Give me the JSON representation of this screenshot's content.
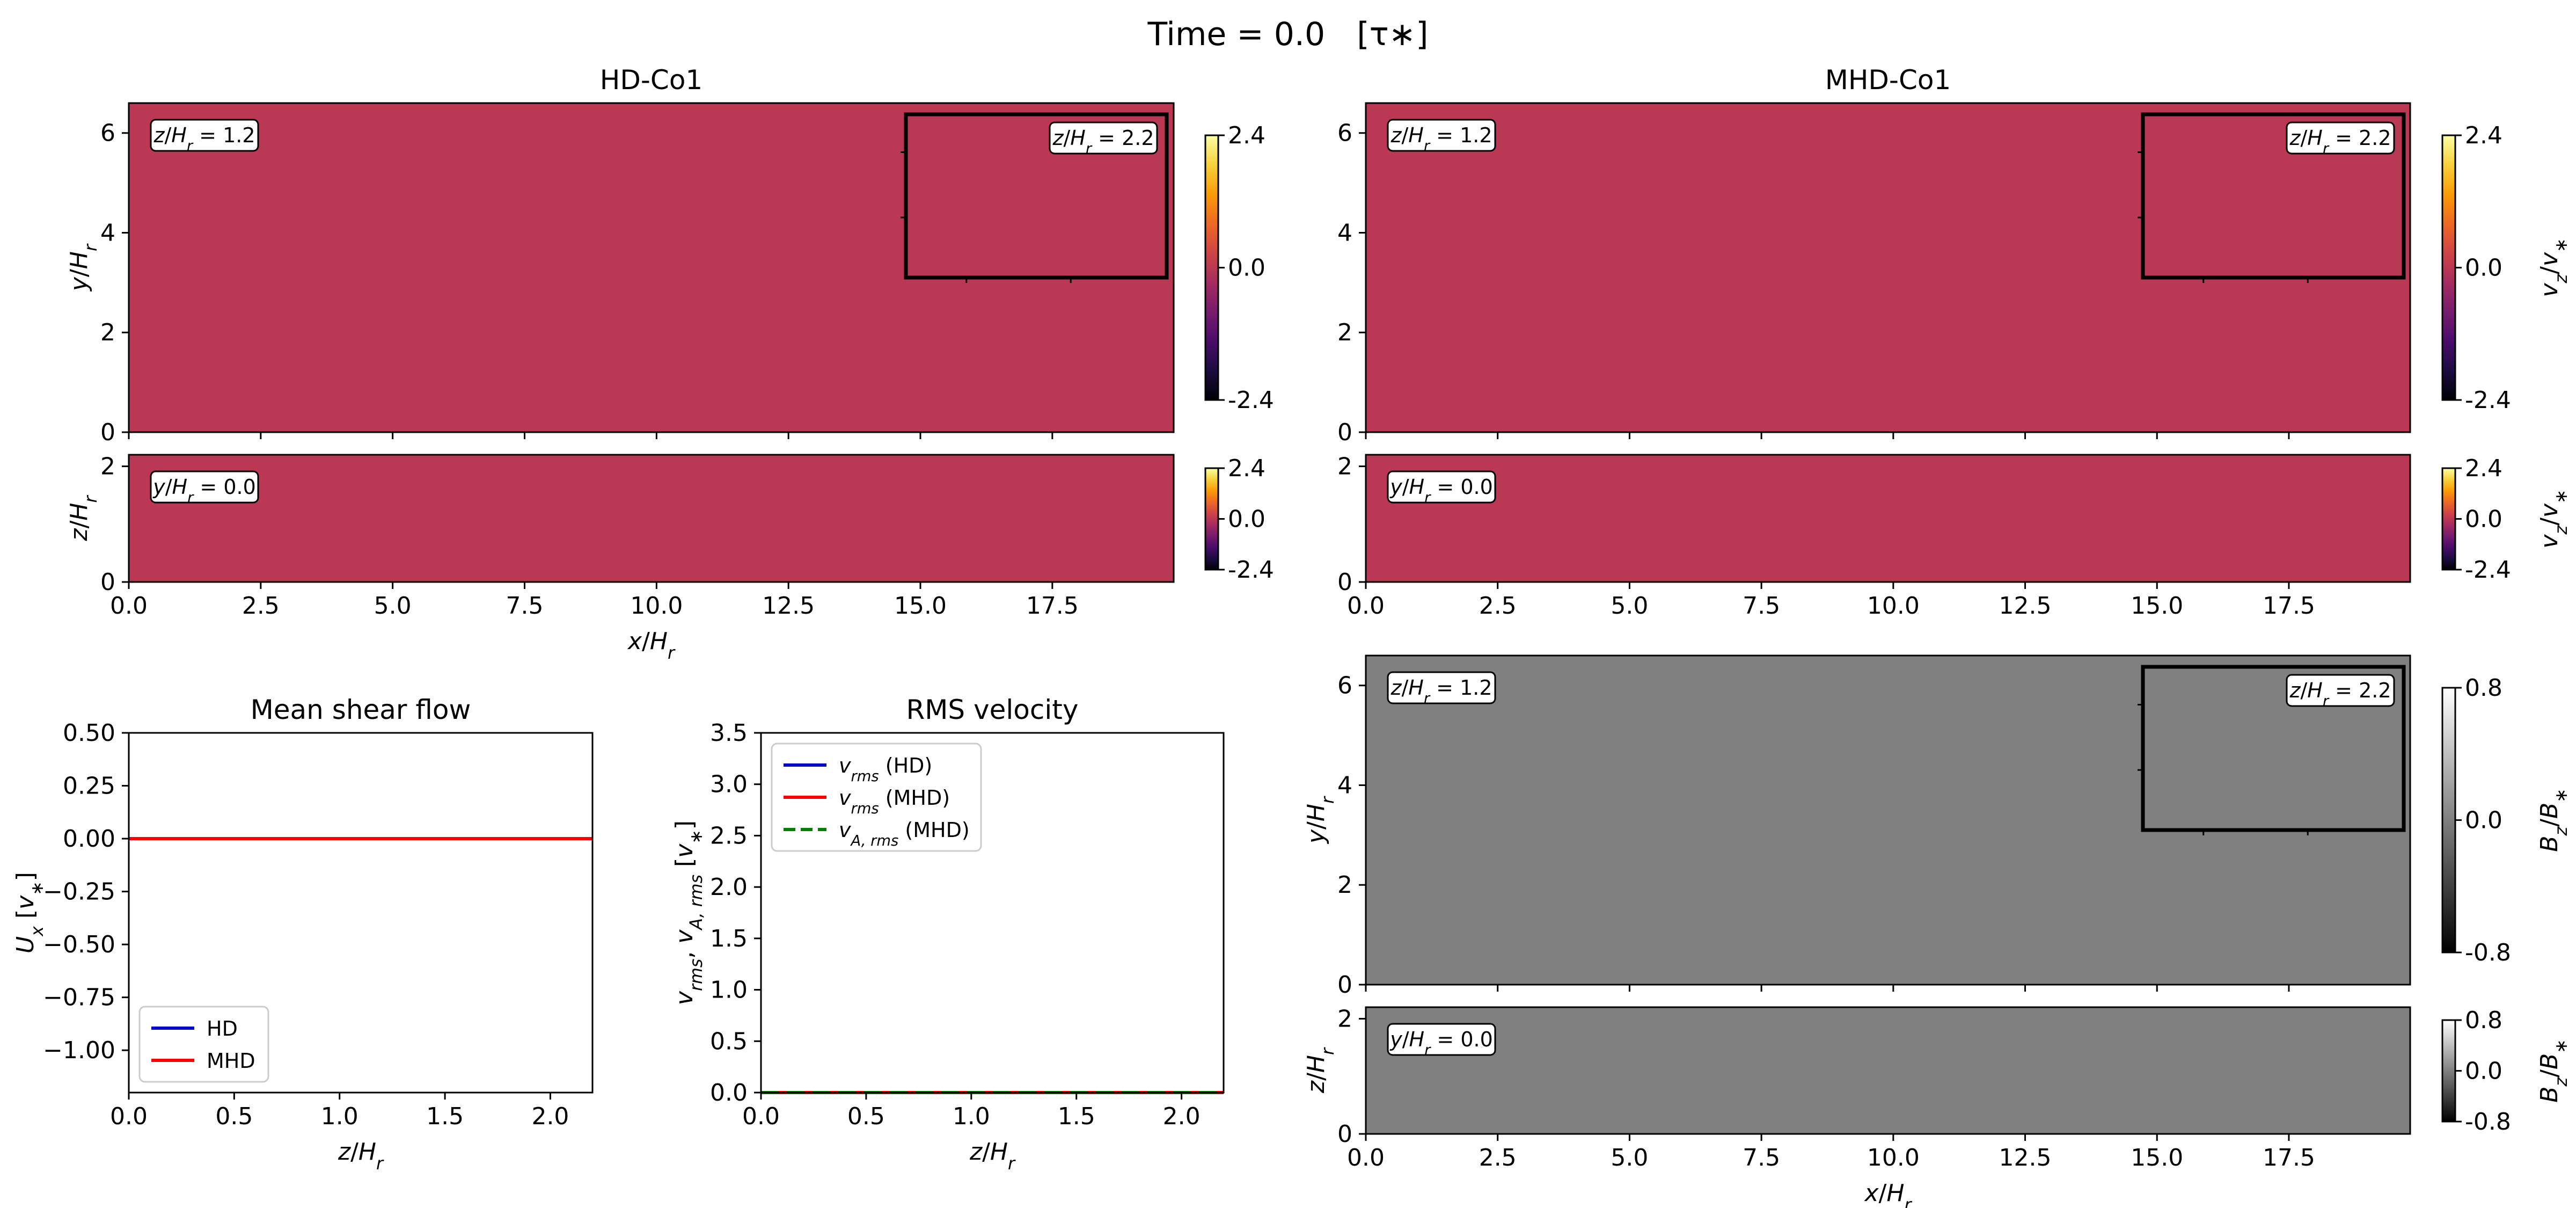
{
  "figure": {
    "title_text": "Time = 0.0",
    "title_units": "[τ∗]"
  },
  "colors": {
    "field_velocity": "#cd5c5c",
    "field_magnetic": "#808080",
    "hd_line": "#0000cc",
    "mhd_line": "#ff0000",
    "alfven_line": "#007f00"
  },
  "colormaps": {
    "inferno": [
      "#000004",
      "#1b0c41",
      "#4a0c6b",
      "#781c6d",
      "#a52c60",
      "#cf4446",
      "#ed6925",
      "#fb9b06",
      "#f7d13d",
      "#fcffa4"
    ],
    "gray": [
      "#000000",
      "#ffffff"
    ]
  },
  "chart_data": [
    {
      "id": "hd-xy-slice",
      "type": "heatmap",
      "title": "HD-Co1",
      "xlabel": "",
      "ylabel": "y/Hr",
      "xlim": [
        0,
        19.8
      ],
      "ylim": [
        0,
        6.6
      ],
      "xticks": [
        0,
        2.5,
        5,
        7.5,
        10,
        12.5,
        15,
        17.5
      ],
      "xticklabels": [
        "",
        "",
        "",
        "",
        "",
        "",
        "",
        ""
      ],
      "yticks": [
        0,
        2,
        4,
        6
      ],
      "yticklabels": [
        "0",
        "2",
        "4",
        "6"
      ],
      "value": 0.0,
      "label_plane": "z/Hr",
      "label_plane_value": "= 1.2",
      "inset": {
        "label_plane": "z/Hr",
        "label_plane_value": "= 2.2"
      },
      "colorbar": {
        "cmap": "inferno",
        "vmin": -2.4,
        "vmax": 2.4,
        "ticks": [
          "-2.4",
          "0.0",
          "2.4"
        ],
        "label": ""
      }
    },
    {
      "id": "hd-xz-slice",
      "type": "heatmap",
      "title": "",
      "xlabel": "x/Hr",
      "ylabel": "z/Hr",
      "xlim": [
        0,
        19.8
      ],
      "ylim": [
        0,
        2.2
      ],
      "xticks": [
        0,
        2.5,
        5,
        7.5,
        10,
        12.5,
        15,
        17.5
      ],
      "xticklabels": [
        "0.0",
        "2.5",
        "5.0",
        "7.5",
        "10.0",
        "12.5",
        "15.0",
        "17.5"
      ],
      "yticks": [
        0,
        2
      ],
      "yticklabels": [
        "0",
        "2"
      ],
      "value": 0.0,
      "label_plane": "y/Hr",
      "label_plane_value": "= 0.0",
      "colorbar": {
        "cmap": "inferno",
        "vmin": -2.4,
        "vmax": 2.4,
        "ticks": [
          "-2.4",
          "0.0",
          "2.4"
        ],
        "label": ""
      }
    },
    {
      "id": "mhd-xy-slice",
      "type": "heatmap",
      "title": "MHD-Co1",
      "xlabel": "",
      "ylabel": "",
      "xlim": [
        0,
        19.8
      ],
      "ylim": [
        0,
        6.6
      ],
      "xticks": [
        0,
        2.5,
        5,
        7.5,
        10,
        12.5,
        15,
        17.5
      ],
      "xticklabels": [
        "",
        "",
        "",
        "",
        "",
        "",
        "",
        ""
      ],
      "yticks": [
        0,
        2,
        4,
        6
      ],
      "yticklabels": [
        "0",
        "2",
        "4",
        "6"
      ],
      "value": 0.0,
      "label_plane": "z/Hr",
      "label_plane_value": "= 1.2",
      "inset": {
        "label_plane": "z/Hr",
        "label_plane_value": "= 2.2"
      },
      "colorbar": {
        "cmap": "inferno",
        "vmin": -2.4,
        "vmax": 2.4,
        "ticks": [
          "-2.4",
          "0.0",
          "2.4"
        ],
        "label": "vz/v∗"
      }
    },
    {
      "id": "mhd-xz-slice",
      "type": "heatmap",
      "title": "",
      "xlabel": "",
      "ylabel": "",
      "xlim": [
        0,
        19.8
      ],
      "ylim": [
        0,
        2.2
      ],
      "xticks": [
        0,
        2.5,
        5,
        7.5,
        10,
        12.5,
        15,
        17.5
      ],
      "xticklabels": [
        "0.0",
        "2.5",
        "5.0",
        "7.5",
        "10.0",
        "12.5",
        "15.0",
        "17.5"
      ],
      "yticks": [
        0,
        2
      ],
      "yticklabels": [
        "0",
        "2"
      ],
      "value": 0.0,
      "label_plane": "y/Hr",
      "label_plane_value": "= 0.0",
      "colorbar": {
        "cmap": "inferno",
        "vmin": -2.4,
        "vmax": 2.4,
        "ticks": [
          "-2.4",
          "0.0",
          "2.4"
        ],
        "label": "vz/v∗"
      }
    },
    {
      "id": "bz-xy-slice",
      "type": "heatmap",
      "title": "",
      "xlabel": "",
      "ylabel": "y/Hr",
      "xlim": [
        0,
        19.8
      ],
      "ylim": [
        0,
        6.6
      ],
      "xticks": [
        0,
        2.5,
        5,
        7.5,
        10,
        12.5,
        15,
        17.5
      ],
      "xticklabels": [
        "",
        "",
        "",
        "",
        "",
        "",
        "",
        ""
      ],
      "yticks": [
        0,
        2,
        4,
        6
      ],
      "yticklabels": [
        "0",
        "2",
        "4",
        "6"
      ],
      "value": 0.0,
      "label_plane": "z/Hr",
      "label_plane_value": "= 1.2",
      "inset": {
        "label_plane": "z/Hr",
        "label_plane_value": "= 2.2"
      },
      "colorbar": {
        "cmap": "gray",
        "vmin": -0.8,
        "vmax": 0.8,
        "ticks": [
          "-0.8",
          "0.0",
          "0.8"
        ],
        "label": "Bz/B∗"
      }
    },
    {
      "id": "bz-xz-slice",
      "type": "heatmap",
      "title": "",
      "xlabel": "x/Hr",
      "ylabel": "z/Hr",
      "xlim": [
        0,
        19.8
      ],
      "ylim": [
        0,
        2.2
      ],
      "xticks": [
        0,
        2.5,
        5,
        7.5,
        10,
        12.5,
        15,
        17.5
      ],
      "xticklabels": [
        "0.0",
        "2.5",
        "5.0",
        "7.5",
        "10.0",
        "12.5",
        "15.0",
        "17.5"
      ],
      "yticks": [
        0,
        2
      ],
      "yticklabels": [
        "0",
        "2"
      ],
      "value": 0.0,
      "label_plane": "y/Hr",
      "label_plane_value": "= 0.0",
      "colorbar": {
        "cmap": "gray",
        "vmin": -0.8,
        "vmax": 0.8,
        "ticks": [
          "-0.8",
          "0.0",
          "0.8"
        ],
        "label": "Bz/B∗"
      }
    },
    {
      "id": "mean-shear-flow",
      "type": "line",
      "title": "Mean shear flow",
      "xlabel": "z/Hr",
      "ylabel": "Ux [v∗]",
      "xlim": [
        0,
        2.2
      ],
      "ylim": [
        -1.2,
        0.5
      ],
      "xticks": [
        0,
        0.5,
        1,
        1.5,
        2
      ],
      "xticklabels": [
        "0.0",
        "0.5",
        "1.0",
        "1.5",
        "2.0"
      ],
      "yticks": [
        -1,
        -0.75,
        -0.5,
        -0.25,
        0,
        0.25,
        0.5
      ],
      "yticklabels": [
        "−1.00",
        "−0.75",
        "−0.50",
        "−0.25",
        "0.00",
        "0.25",
        "0.50"
      ],
      "legend": "lower-left",
      "series": [
        {
          "name": "HD",
          "color": "#0000cc",
          "dash": "",
          "x": [
            0,
            2.2
          ],
          "y": [
            0,
            0
          ]
        },
        {
          "name": "MHD",
          "color": "#ff0000",
          "dash": "",
          "x": [
            0,
            2.2
          ],
          "y": [
            0,
            0
          ]
        }
      ]
    },
    {
      "id": "rms-velocity",
      "type": "line",
      "title": "RMS velocity",
      "xlabel": "z/Hr",
      "ylabel": "vrms, vA,rms [v∗]",
      "xlim": [
        0,
        2.2
      ],
      "ylim": [
        0,
        3.5
      ],
      "xticks": [
        0,
        0.5,
        1,
        1.5,
        2
      ],
      "xticklabels": [
        "0.0",
        "0.5",
        "1.0",
        "1.5",
        "2.0"
      ],
      "yticks": [
        0,
        0.5,
        1,
        1.5,
        2,
        2.5,
        3,
        3.5
      ],
      "yticklabels": [
        "0.0",
        "0.5",
        "1.0",
        "1.5",
        "2.0",
        "2.5",
        "3.0",
        "3.5"
      ],
      "legend": "top-left",
      "series": [
        {
          "name": "vrms (HD)",
          "color": "#0000cc",
          "dash": "",
          "x": [
            0,
            2.2
          ],
          "y": [
            0,
            0
          ]
        },
        {
          "name": "vrms (MHD)",
          "color": "#ff0000",
          "dash": "",
          "x": [
            0,
            2.2
          ],
          "y": [
            0,
            0
          ]
        },
        {
          "name": "vA,rms (MHD)",
          "color": "#007f00",
          "dash": "32 16",
          "x": [
            0,
            2.2
          ],
          "y": [
            0,
            0
          ]
        }
      ]
    }
  ]
}
